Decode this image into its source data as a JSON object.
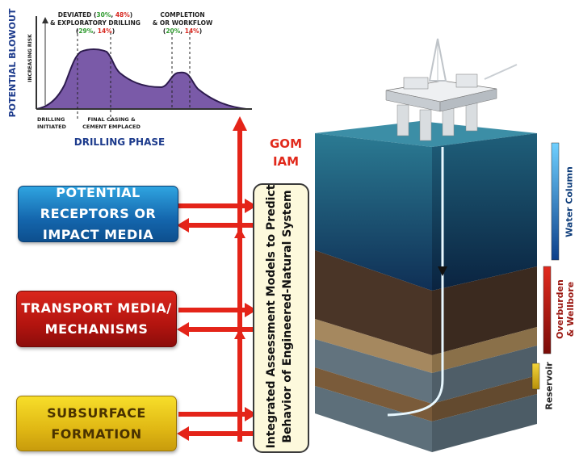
{
  "chart": {
    "ylabel": "POTENTIAL BLOWOUT",
    "yarrow_label": "INCREASING RISK",
    "xlabel": "DRILLING PHASE",
    "annotations": {
      "deviated_line1_a": "DEVIATED (",
      "deviated_pct1": "30%",
      "deviated_sep": ", ",
      "deviated_pct2": "48%",
      "deviated_close": ")",
      "deviated_line2": "& EXPLORATORY DRILLING",
      "deviated_line3_open": "(",
      "deviated_pct3": "29%",
      "deviated_pct4": "14%",
      "deviated_line3_close": ")",
      "completion_line1": "COMPLETION",
      "completion_line2": "& OR WORKFLOW",
      "completion_line3_open": "(",
      "completion_pct1": "20%",
      "completion_pct2": "14%",
      "completion_line3_close": ")",
      "drilling_initiated_1": "DRILLING",
      "drilling_initiated_2": "INITIATED",
      "final_casing_1": "FINAL CASING &",
      "final_casing_2": "CEMENT EMPLACED"
    },
    "colors": {
      "fill": "#7a5aa8",
      "green": "#2e9a2e",
      "red": "#d7261e",
      "navy": "#1d3b8c"
    }
  },
  "boxes": {
    "receptors": {
      "line1": "POTENTIAL RECEPTORS OR",
      "line2": "IMPACT MEDIA"
    },
    "transport": {
      "line1": "TRANSPORT MEDIA/",
      "line2": "MECHANISMS"
    },
    "subsurface": {
      "line1": "SUBSURFACE",
      "line2": "FORMATION"
    }
  },
  "gom": {
    "line1": "GOM",
    "line2": "IAM"
  },
  "iam": {
    "line1": "Integrated Assessment Models to Predict",
    "line2": "Behavior of Engineered-Natural System"
  },
  "legend": {
    "water_column": "Water Column",
    "overburden_1": "Overburden",
    "overburden_2": "& Wellbore",
    "reservoir": "Reservoir",
    "colors": {
      "water": "#2a8fd6",
      "overburden": "#c0201a",
      "reservoir": "#d4a812"
    }
  }
}
